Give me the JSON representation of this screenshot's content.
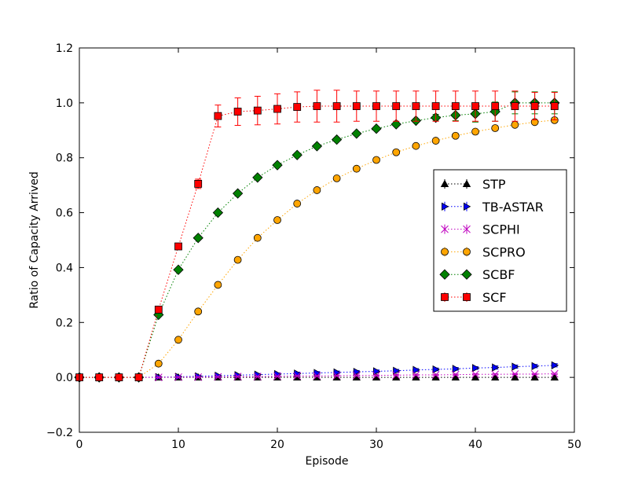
{
  "chart_data": {
    "type": "line",
    "xlabel": "Episode",
    "ylabel": "Ratio of Capacity Arrived",
    "xlim": [
      0,
      50
    ],
    "ylim": [
      -0.2,
      1.2
    ],
    "xticks": [
      "0",
      "10",
      "20",
      "30",
      "40",
      "50"
    ],
    "yticks": [
      "−0.2",
      "0.0",
      "0.2",
      "0.4",
      "0.6",
      "0.8",
      "1.0",
      "1.2"
    ],
    "grid": false,
    "legend_position": "right",
    "x": [
      0,
      2,
      4,
      6,
      8,
      10,
      12,
      14,
      16,
      18,
      20,
      22,
      24,
      26,
      28,
      30,
      32,
      34,
      36,
      38,
      40,
      42,
      44,
      46,
      48
    ],
    "series": [
      {
        "name": "STP",
        "color": "#000000",
        "marker": "triangle-up",
        "values": [
          0,
          0,
          0,
          0,
          0,
          0,
          0,
          0,
          0,
          0,
          0,
          0,
          0,
          0,
          0,
          0,
          0,
          0,
          0,
          0,
          0,
          0,
          0,
          0,
          0
        ],
        "errors": [
          0,
          0,
          0,
          0,
          0,
          0,
          0,
          0,
          0,
          0,
          0,
          0,
          0,
          0,
          0,
          0,
          0,
          0,
          0,
          0,
          0,
          0,
          0,
          0,
          0
        ]
      },
      {
        "name": "TB-ASTAR",
        "color": "#0000ff",
        "marker": "triangle-right",
        "values": [
          0,
          0,
          0,
          0,
          0.001,
          0.002,
          0.004,
          0.006,
          0.008,
          0.01,
          0.012,
          0.014,
          0.016,
          0.018,
          0.02,
          0.022,
          0.024,
          0.027,
          0.029,
          0.031,
          0.034,
          0.036,
          0.039,
          0.041,
          0.044
        ],
        "errors": [
          0,
          0,
          0,
          0,
          0.002,
          0.003,
          0.003,
          0.004,
          0.004,
          0.004,
          0.004,
          0.005,
          0.005,
          0.005,
          0.005,
          0.005,
          0.005,
          0.005,
          0.005,
          0.005,
          0.005,
          0.006,
          0.006,
          0.006,
          0.006
        ]
      },
      {
        "name": "SCPHI",
        "color": "#bf00bf",
        "marker": "x",
        "values": [
          0,
          0,
          0,
          0,
          0,
          0.001,
          0.001,
          0.002,
          0.003,
          0.003,
          0.004,
          0.005,
          0.005,
          0.006,
          0.007,
          0.007,
          0.008,
          0.009,
          0.009,
          0.01,
          0.011,
          0.011,
          0.012,
          0.012,
          0.013
        ],
        "errors": [
          0,
          0,
          0,
          0,
          0.001,
          0.001,
          0.001,
          0.002,
          0.002,
          0.002,
          0.002,
          0.002,
          0.002,
          0.002,
          0.002,
          0.002,
          0.002,
          0.002,
          0.002,
          0.002,
          0.002,
          0.002,
          0.002,
          0.002,
          0.002
        ]
      },
      {
        "name": "SCPRO",
        "color": "#ffa500",
        "marker": "circle",
        "values": [
          0,
          0,
          0,
          0,
          0.05,
          0.137,
          0.24,
          0.337,
          0.428,
          0.508,
          0.573,
          0.633,
          0.682,
          0.725,
          0.76,
          0.792,
          0.82,
          0.843,
          0.862,
          0.88,
          0.895,
          0.908,
          0.92,
          0.93,
          0.937
        ],
        "errors": [
          0,
          0,
          0,
          0,
          0,
          0,
          0,
          0,
          0,
          0,
          0,
          0,
          0,
          0,
          0,
          0,
          0,
          0,
          0,
          0,
          0,
          0,
          0,
          0,
          0
        ]
      },
      {
        "name": "SCBF",
        "color": "#008000",
        "marker": "diamond",
        "values": [
          0,
          0,
          0,
          0,
          0.228,
          0.392,
          0.508,
          0.6,
          0.67,
          0.728,
          0.773,
          0.81,
          0.842,
          0.866,
          0.888,
          0.906,
          0.922,
          0.935,
          0.946,
          0.955,
          0.96,
          0.968,
          1.0,
          1.0,
          1.0
        ],
        "errors": [
          0,
          0,
          0,
          0,
          0,
          0,
          0,
          0,
          0,
          0,
          0,
          0,
          0,
          0,
          0,
          0,
          0,
          0.005,
          0.012,
          0.02,
          0.03,
          0.035,
          0.04,
          0.04,
          0.04
        ]
      },
      {
        "name": "SCF",
        "color": "#ff0000",
        "marker": "square",
        "values": [
          0,
          0,
          0,
          0,
          0.247,
          0.477,
          0.705,
          0.952,
          0.968,
          0.972,
          0.978,
          0.985,
          0.988,
          0.988,
          0.988,
          0.988,
          0.988,
          0.988,
          0.988,
          0.988,
          0.988,
          0.988,
          0.988,
          0.988,
          0.988
        ],
        "errors": [
          0,
          0,
          0,
          0,
          0,
          0.005,
          0.017,
          0.04,
          0.05,
          0.052,
          0.055,
          0.055,
          0.058,
          0.058,
          0.055,
          0.055,
          0.055,
          0.055,
          0.055,
          0.055,
          0.055,
          0.055,
          0.055,
          0.05,
          0.05
        ]
      }
    ]
  }
}
